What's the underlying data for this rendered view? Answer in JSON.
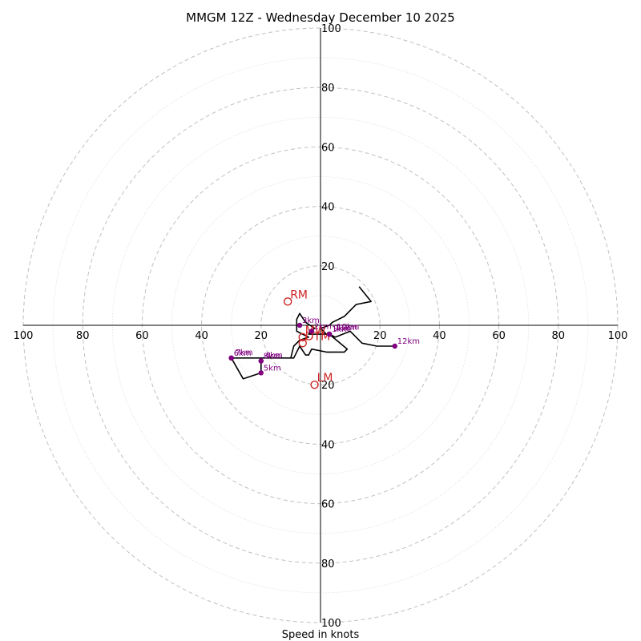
{
  "chart_data": {
    "type": "scatter",
    "title": "MMGM 12Z - Wednesday December 10 2025",
    "xlabel": "Speed in knots",
    "ylabel": "",
    "xlim": [
      -100,
      100
    ],
    "ylim": [
      -100,
      100
    ],
    "rings_major": [
      20,
      40,
      60,
      80,
      100
    ],
    "rings_minor": [
      10,
      30,
      50,
      70,
      90
    ],
    "x_tick_values": [
      -100,
      -80,
      -60,
      -40,
      -20,
      20,
      40,
      60,
      80,
      100
    ],
    "x_tick_labels": [
      "100",
      "80",
      "60",
      "40",
      "20",
      "20",
      "40",
      "60",
      "80",
      "100"
    ],
    "y_tick_values": [
      100,
      80,
      60,
      40,
      20,
      -20,
      -40,
      -60,
      -80,
      -100
    ],
    "y_tick_labels": [
      "100",
      "80",
      "60",
      "40",
      "20",
      "20",
      "40",
      "60",
      "80",
      "100"
    ],
    "hodograph_trace": [
      [
        13,
        13
      ],
      [
        17,
        8
      ],
      [
        12,
        7
      ],
      [
        8,
        3
      ],
      [
        4,
        1
      ],
      [
        3,
        0
      ],
      [
        0,
        -1
      ],
      [
        2,
        -3
      ],
      [
        -4,
        -3
      ],
      [
        -2,
        -1
      ],
      [
        -5,
        1
      ],
      [
        -7,
        4
      ],
      [
        -8,
        2
      ],
      [
        -8,
        -2
      ],
      [
        -4,
        -4
      ],
      [
        -7,
        -5
      ],
      [
        -9,
        -7
      ],
      [
        -10,
        -11
      ],
      [
        -20,
        -11
      ],
      [
        -30,
        -11
      ],
      [
        -26,
        -18
      ],
      [
        -20,
        -16
      ],
      [
        -20,
        -12
      ],
      [
        -20,
        -11
      ],
      [
        -9,
        -11
      ],
      [
        -7,
        -7
      ],
      [
        -5,
        -10
      ],
      [
        -4,
        -10
      ],
      [
        -3,
        -8
      ],
      [
        2,
        -9
      ],
      [
        8,
        -9
      ],
      [
        9,
        -8
      ],
      [
        3,
        -3
      ],
      [
        5,
        -4
      ],
      [
        5,
        -4
      ],
      [
        10,
        -2
      ],
      [
        14,
        -6
      ],
      [
        19,
        -7
      ],
      [
        25,
        -7
      ],
      [
        20,
        -7
      ]
    ],
    "height_markers": [
      {
        "label": "3km",
        "u": -7,
        "v": 0,
        "color": "#800080"
      },
      {
        "label": "2km",
        "u": -3,
        "v": -2,
        "color": "#800080"
      },
      {
        "label": "1km",
        "u": 3,
        "v": -3,
        "color": "#800080"
      },
      {
        "label": "9km",
        "u": 3,
        "v": -3,
        "color": "#800080"
      },
      {
        "label": "11km",
        "u": 3,
        "v": -3,
        "color": "#800080"
      },
      {
        "label": "10km",
        "u": 3,
        "v": -3,
        "color": "#800080"
      },
      {
        "label": "8km",
        "u": -20,
        "v": -12,
        "color": "#800080"
      },
      {
        "label": "4km",
        "u": -20,
        "v": -12,
        "color": "#800080"
      },
      {
        "label": "6km",
        "u": -30,
        "v": -11,
        "color": "#800080"
      },
      {
        "label": "7km",
        "u": -30,
        "v": -11,
        "color": "#800080"
      },
      {
        "label": "5km",
        "u": -20,
        "v": -16,
        "color": "#800080"
      },
      {
        "label": "12km",
        "u": 25,
        "v": -7,
        "color": "#800080"
      }
    ],
    "storm_motions": [
      {
        "label": "RM",
        "u": -11,
        "v": 8,
        "color": "#cc2222"
      },
      {
        "label": "LM",
        "u": -2,
        "v": -20,
        "color": "#cc2222"
      },
      {
        "label": "MW",
        "u": -6,
        "v": -4,
        "color": "#cc2222"
      },
      {
        "label": "DTM",
        "u": -6,
        "v": -6,
        "color": "#cc2222"
      }
    ]
  }
}
